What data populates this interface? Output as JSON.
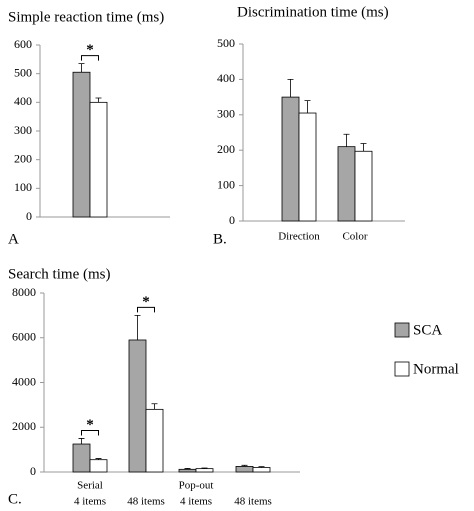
{
  "chart_data": [
    {
      "type": "bar",
      "title": "Simple reaction time (ms)",
      "panel_label": "A",
      "categories": [
        null
      ],
      "ylim": [
        0,
        600
      ],
      "yticks": [
        0,
        100,
        200,
        300,
        400,
        500,
        600
      ],
      "series": [
        {
          "color": "#a6a6a6",
          "values": [
            505
          ],
          "errors": [
            30
          ]
        },
        {
          "color": "#ffffff",
          "values": [
            400
          ],
          "errors": [
            15
          ]
        }
      ],
      "significance": [
        "*"
      ]
    },
    {
      "type": "bar",
      "title": "Discrimination time (ms)",
      "panel_label": "B.",
      "categories": [
        "Direction",
        "Color"
      ],
      "ylim": [
        0,
        500
      ],
      "yticks": [
        0,
        100,
        200,
        300,
        400,
        500
      ],
      "series": [
        {
          "color": "#a6a6a6",
          "values": [
            350,
            210
          ],
          "errors": [
            50,
            35
          ]
        },
        {
          "color": "#ffffff",
          "values": [
            305,
            197
          ],
          "errors": [
            35,
            22
          ]
        }
      ]
    },
    {
      "type": "bar",
      "title": "Search time (ms)",
      "panel_label": "C.",
      "categories": [
        "4 items",
        "48 items",
        "4 items",
        "48 items"
      ],
      "group_labels": [
        "Serial",
        null,
        "Pop-out",
        null
      ],
      "ylim": [
        0,
        8000
      ],
      "yticks": [
        0,
        2000,
        4000,
        6000,
        8000
      ],
      "series": [
        {
          "name": "SCA",
          "color": "#a6a6a6",
          "values": [
            1250,
            5900,
            120,
            250
          ],
          "errors": [
            250,
            1100,
            40,
            50
          ]
        },
        {
          "name": "Normal",
          "color": "#ffffff",
          "values": [
            550,
            2800,
            150,
            200
          ],
          "errors": [
            50,
            250,
            30,
            40
          ]
        }
      ],
      "significance": [
        "*",
        "*",
        null,
        null
      ]
    }
  ]
}
